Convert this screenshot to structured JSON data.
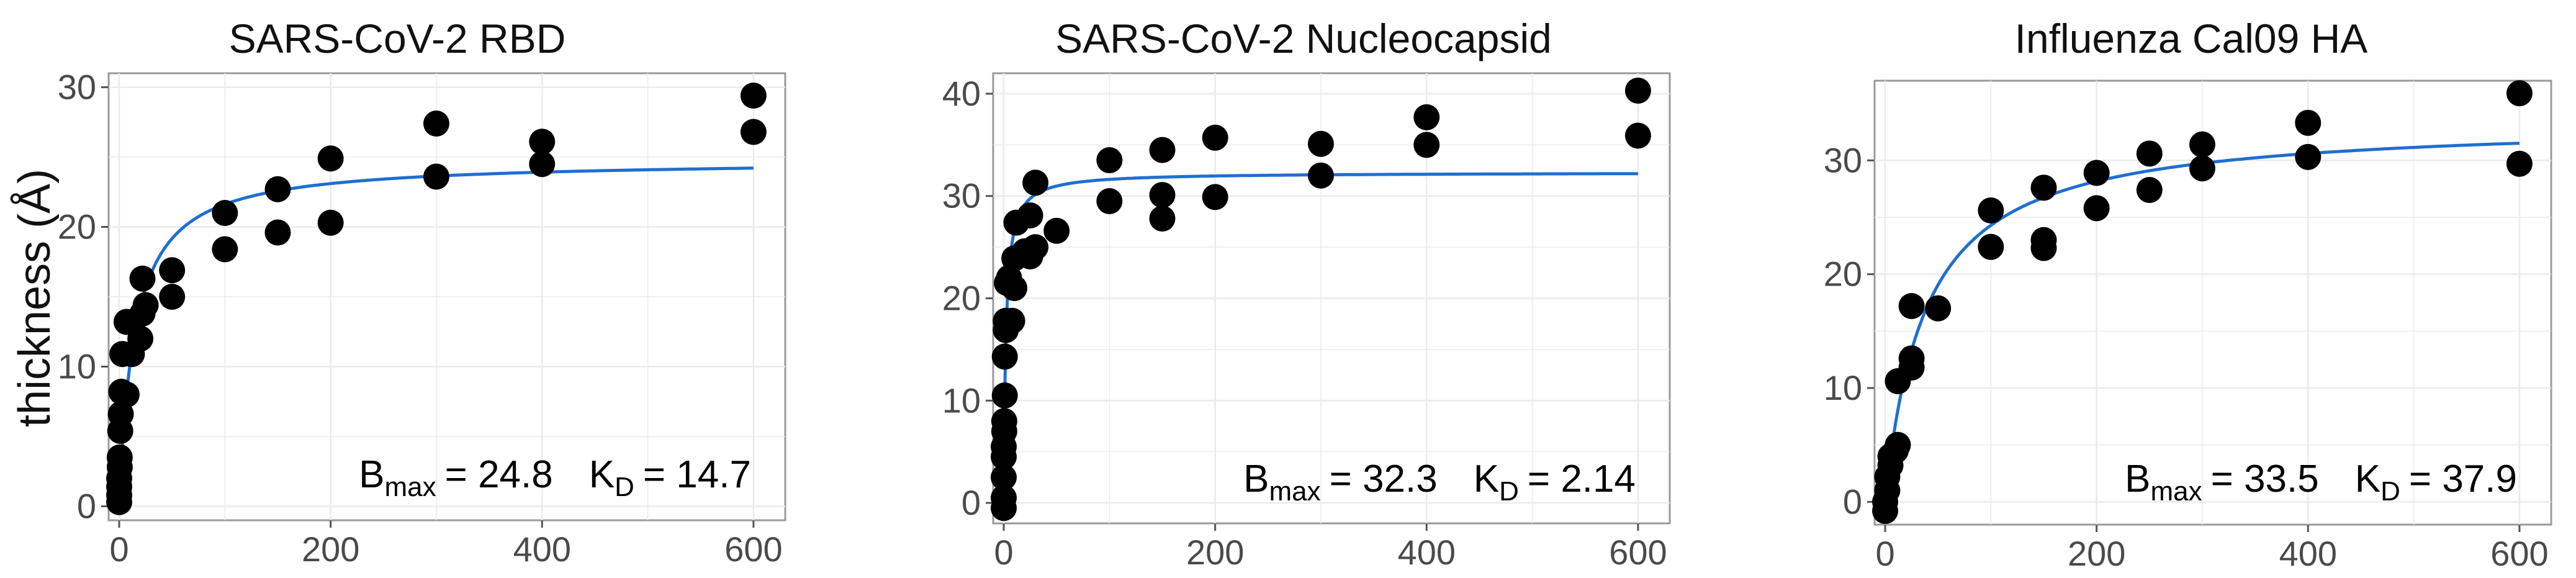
{
  "chart_data": [
    {
      "type": "scatter",
      "title": "SARS-CoV-2 RBD",
      "ylabel": "thickness (Å)",
      "xlabel": "",
      "xlim": [
        -10,
        630
      ],
      "ylim": [
        -1,
        31
      ],
      "x_ticks": [
        0,
        200,
        400,
        600
      ],
      "y_ticks": [
        0,
        10,
        20,
        30
      ],
      "grid": true,
      "fit": {
        "model": "one-site binding",
        "bmax": 24.8,
        "kd": 14.7,
        "color": "#1f6fd1"
      },
      "annotation": {
        "bmax_symbol": "B",
        "bmax_sub": "max",
        "bmax_value": "= 24.8",
        "kd_symbol": "K",
        "kd_sub": "D",
        "kd_value": "= 14.7"
      },
      "points": [
        {
          "x": 0,
          "y": 0.3
        },
        {
          "x": 0,
          "y": 0.8
        },
        {
          "x": 0,
          "y": 1.4
        },
        {
          "x": 0,
          "y": 2.0
        },
        {
          "x": 0.5,
          "y": 2.8
        },
        {
          "x": 0.5,
          "y": 3.5
        },
        {
          "x": 1,
          "y": 5.4
        },
        {
          "x": 1.5,
          "y": 6.6
        },
        {
          "x": 2,
          "y": 8.2
        },
        {
          "x": 3,
          "y": 10.9
        },
        {
          "x": 7,
          "y": 8.0
        },
        {
          "x": 7,
          "y": 13.2
        },
        {
          "x": 12,
          "y": 10.9
        },
        {
          "x": 20,
          "y": 12.0
        },
        {
          "x": 22,
          "y": 13.8
        },
        {
          "x": 22,
          "y": 16.3
        },
        {
          "x": 25,
          "y": 14.4
        },
        {
          "x": 50,
          "y": 15.0
        },
        {
          "x": 50,
          "y": 16.9
        },
        {
          "x": 100,
          "y": 18.4
        },
        {
          "x": 100,
          "y": 21.0
        },
        {
          "x": 150,
          "y": 19.6
        },
        {
          "x": 150,
          "y": 22.7
        },
        {
          "x": 200,
          "y": 20.3
        },
        {
          "x": 200,
          "y": 24.9
        },
        {
          "x": 300,
          "y": 23.6
        },
        {
          "x": 300,
          "y": 27.4
        },
        {
          "x": 400,
          "y": 24.5
        },
        {
          "x": 400,
          "y": 26.1
        },
        {
          "x": 600,
          "y": 26.8
        },
        {
          "x": 600,
          "y": 29.4
        }
      ]
    },
    {
      "type": "scatter",
      "title": "SARS-CoV-2 Nucleocapsid",
      "ylabel": "",
      "xlabel": "",
      "xlim": [
        -10,
        630
      ],
      "ylim": [
        -2,
        42
      ],
      "x_ticks": [
        0,
        200,
        400,
        600
      ],
      "y_ticks": [
        0,
        10,
        20,
        30,
        40
      ],
      "grid": true,
      "fit": {
        "model": "one-site binding",
        "bmax": 32.3,
        "kd": 2.14,
        "color": "#1f6fd1"
      },
      "annotation": {
        "bmax_symbol": "B",
        "bmax_sub": "max",
        "bmax_value": "= 32.3",
        "kd_symbol": "K",
        "kd_sub": "D",
        "kd_value": "= 2.14"
      },
      "points": [
        {
          "x": 0,
          "y": -0.5
        },
        {
          "x": 0,
          "y": 0.5
        },
        {
          "x": 0,
          "y": 2.5
        },
        {
          "x": 0,
          "y": 4.5
        },
        {
          "x": 0,
          "y": 5.5
        },
        {
          "x": 0.5,
          "y": 7.0
        },
        {
          "x": 0.5,
          "y": 8.0
        },
        {
          "x": 1,
          "y": 10.5
        },
        {
          "x": 1,
          "y": 14.3
        },
        {
          "x": 2,
          "y": 16.9
        },
        {
          "x": 2,
          "y": 17.8
        },
        {
          "x": 3,
          "y": 21.5
        },
        {
          "x": 5,
          "y": 22.0
        },
        {
          "x": 8,
          "y": 17.8
        },
        {
          "x": 10,
          "y": 21.0
        },
        {
          "x": 10,
          "y": 23.9
        },
        {
          "x": 12,
          "y": 27.4
        },
        {
          "x": 20,
          "y": 24.6
        },
        {
          "x": 25,
          "y": 28.1
        },
        {
          "x": 25,
          "y": 24.1
        },
        {
          "x": 30,
          "y": 31.3
        },
        {
          "x": 30,
          "y": 25.0
        },
        {
          "x": 50,
          "y": 26.6
        },
        {
          "x": 100,
          "y": 29.5
        },
        {
          "x": 100,
          "y": 33.5
        },
        {
          "x": 150,
          "y": 27.8
        },
        {
          "x": 150,
          "y": 30.1
        },
        {
          "x": 150,
          "y": 34.5
        },
        {
          "x": 200,
          "y": 29.9
        },
        {
          "x": 200,
          "y": 35.7
        },
        {
          "x": 300,
          "y": 32.0
        },
        {
          "x": 300,
          "y": 35.1
        },
        {
          "x": 400,
          "y": 35.0
        },
        {
          "x": 400,
          "y": 37.7
        },
        {
          "x": 600,
          "y": 35.9
        },
        {
          "x": 600,
          "y": 40.3
        }
      ]
    },
    {
      "type": "scatter",
      "title": "Influenza Cal09 HA",
      "ylabel": "",
      "xlabel": "",
      "xlim": [
        -10,
        630
      ],
      "ylim": [
        -2,
        37
      ],
      "x_ticks": [
        0,
        200,
        400,
        600
      ],
      "y_ticks": [
        0,
        10,
        20,
        30
      ],
      "grid": true,
      "fit": {
        "model": "one-site binding",
        "bmax": 33.5,
        "kd": 37.9,
        "color": "#1f6fd1"
      },
      "annotation": {
        "bmax_symbol": "B",
        "bmax_sub": "max",
        "bmax_value": "= 33.5",
        "kd_symbol": "K",
        "kd_sub": "D",
        "kd_value": "= 37.9"
      },
      "points": [
        {
          "x": 0,
          "y": -0.8
        },
        {
          "x": 0,
          "y": 0.0
        },
        {
          "x": 2,
          "y": 1.0
        },
        {
          "x": 2,
          "y": 2.2
        },
        {
          "x": 5,
          "y": 3.2
        },
        {
          "x": 5,
          "y": 4.0
        },
        {
          "x": 10,
          "y": 4.5
        },
        {
          "x": 12,
          "y": 5.0
        },
        {
          "x": 12,
          "y": 10.6
        },
        {
          "x": 25,
          "y": 11.8
        },
        {
          "x": 25,
          "y": 12.6
        },
        {
          "x": 25,
          "y": 17.2
        },
        {
          "x": 50,
          "y": 17.0
        },
        {
          "x": 100,
          "y": 22.4
        },
        {
          "x": 100,
          "y": 25.6
        },
        {
          "x": 150,
          "y": 22.3
        },
        {
          "x": 150,
          "y": 23.0
        },
        {
          "x": 150,
          "y": 27.6
        },
        {
          "x": 200,
          "y": 25.8
        },
        {
          "x": 200,
          "y": 28.9
        },
        {
          "x": 250,
          "y": 27.4
        },
        {
          "x": 250,
          "y": 30.6
        },
        {
          "x": 300,
          "y": 29.3
        },
        {
          "x": 300,
          "y": 31.4
        },
        {
          "x": 400,
          "y": 30.3
        },
        {
          "x": 400,
          "y": 33.3
        },
        {
          "x": 600,
          "y": 29.7
        },
        {
          "x": 600,
          "y": 35.9
        }
      ]
    }
  ]
}
